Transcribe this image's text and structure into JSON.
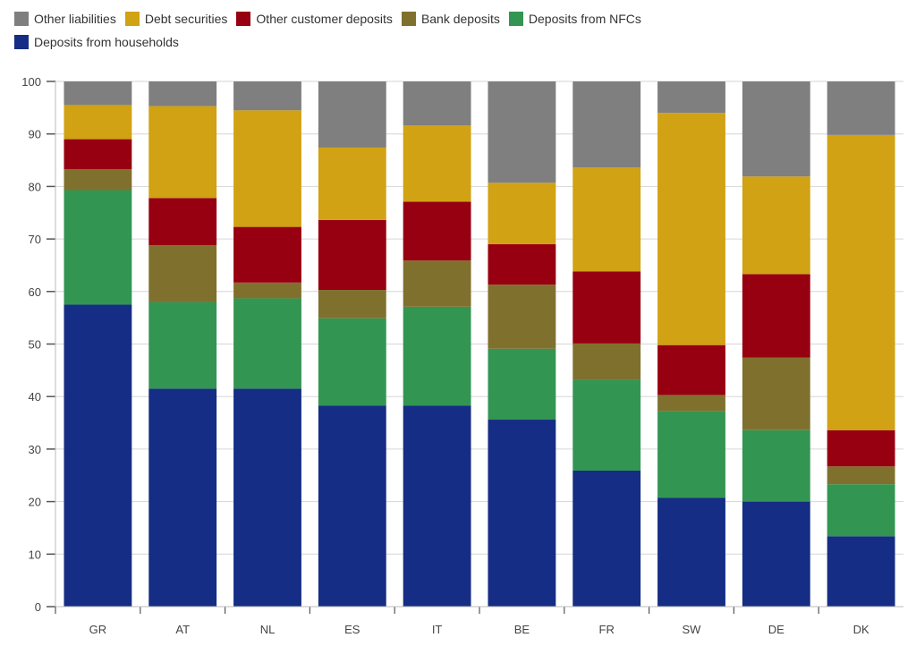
{
  "chart_data": {
    "type": "bar",
    "stacked": true,
    "title": "",
    "xlabel": "",
    "ylabel": "",
    "ylim": [
      0,
      100
    ],
    "yticks": [
      0,
      10,
      20,
      30,
      40,
      50,
      60,
      70,
      80,
      90,
      100
    ],
    "grid": true,
    "legend_position": "top-left",
    "categories": [
      "GR",
      "AT",
      "NL",
      "ES",
      "IT",
      "BE",
      "FR",
      "SW",
      "DE",
      "DK"
    ],
    "series": [
      {
        "name": "Deposits from households",
        "color": "#152d84",
        "values": [
          57.5,
          41.5,
          41.5,
          38.3,
          38.3,
          35.6,
          25.9,
          20.7,
          20.0,
          13.4
        ]
      },
      {
        "name": "Deposits from NFCs",
        "color": "#339552",
        "values": [
          21.8,
          16.5,
          17.2,
          16.6,
          18.8,
          13.5,
          17.3,
          16.5,
          13.6,
          9.9
        ]
      },
      {
        "name": "Bank deposits",
        "color": "#80702e",
        "values": [
          4.0,
          10.8,
          3.0,
          5.4,
          8.8,
          12.2,
          6.9,
          3.1,
          13.8,
          3.4
        ]
      },
      {
        "name": "Other customer deposits",
        "color": "#970010",
        "values": [
          5.7,
          9.0,
          10.6,
          13.3,
          11.2,
          7.7,
          13.7,
          9.5,
          15.9,
          6.9
        ]
      },
      {
        "name": "Debt securities",
        "color": "#d0a214",
        "values": [
          6.5,
          17.5,
          22.2,
          13.8,
          14.5,
          11.7,
          19.8,
          44.2,
          18.6,
          56.2
        ]
      },
      {
        "name": "Other liabilities",
        "color": "#7f7f7f",
        "values": [
          4.5,
          4.7,
          5.5,
          12.6,
          8.4,
          19.3,
          16.4,
          6.0,
          18.1,
          10.2
        ]
      }
    ]
  },
  "legend": {
    "items": [
      {
        "label": "Other liabilities",
        "color": "#7f7f7f"
      },
      {
        "label": "Debt securities",
        "color": "#d0a214"
      },
      {
        "label": "Other customer deposits",
        "color": "#970010"
      },
      {
        "label": "Bank deposits",
        "color": "#80702e"
      },
      {
        "label": "Deposits from NFCs",
        "color": "#339552"
      },
      {
        "label": "Deposits from households",
        "color": "#152d84"
      }
    ]
  }
}
